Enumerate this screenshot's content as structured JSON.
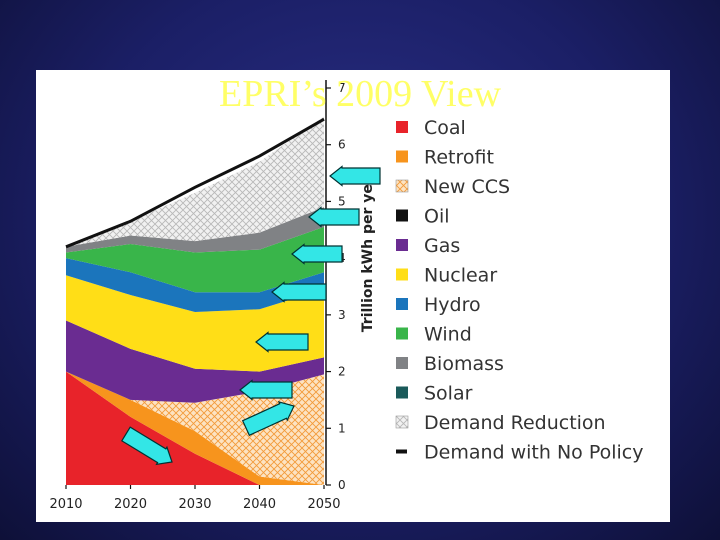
{
  "slide": {
    "title": "EPRI’s 2009 View"
  },
  "colors": {
    "background": "#1b1f66",
    "title": "#ffff66",
    "arrow_fill": "#33e6e6",
    "arrow_stroke": "#003333"
  },
  "chart_data": {
    "type": "area",
    "stacked": true,
    "x": [
      2010,
      2020,
      2030,
      2040,
      2050
    ],
    "xlabel": "",
    "ylabel": "Trillion kWh per year",
    "ylim": [
      0,
      7
    ],
    "yticks": [
      0,
      1,
      2,
      3,
      4,
      5,
      6,
      7
    ],
    "xticks": [
      "2010",
      "2020",
      "2030",
      "2040",
      "2050"
    ],
    "grid": false,
    "legend_position": "right",
    "series": [
      {
        "name": "Coal",
        "color": "#e8232a",
        "pattern": false,
        "values": [
          2.0,
          1.2,
          0.55,
          0.0,
          0.0
        ]
      },
      {
        "name": "Retrofit",
        "color": "#f7941d",
        "pattern": false,
        "values": [
          0.0,
          0.3,
          0.4,
          0.15,
          0.0
        ]
      },
      {
        "name": "New CCS",
        "color": "#f7941d",
        "pattern": true,
        "values": [
          0.0,
          0.0,
          0.5,
          1.5,
          1.95
        ]
      },
      {
        "name": "Oil",
        "color": "#111111",
        "pattern": false,
        "values": [
          0.0,
          0.0,
          0.0,
          0.0,
          0.0
        ]
      },
      {
        "name": "Gas",
        "color": "#6a2c91",
        "pattern": false,
        "values": [
          0.9,
          0.9,
          0.6,
          0.35,
          0.3
        ]
      },
      {
        "name": "Nuclear",
        "color": "#ffde17",
        "pattern": false,
        "values": [
          0.8,
          0.95,
          1.0,
          1.1,
          1.2
        ]
      },
      {
        "name": "Hydro",
        "color": "#1b75bc",
        "pattern": false,
        "values": [
          0.3,
          0.4,
          0.35,
          0.3,
          0.3
        ]
      },
      {
        "name": "Wind",
        "color": "#39b54a",
        "pattern": false,
        "values": [
          0.1,
          0.5,
          0.7,
          0.75,
          0.8
        ]
      },
      {
        "name": "Biomass",
        "color": "#808285",
        "pattern": false,
        "values": [
          0.1,
          0.15,
          0.2,
          0.3,
          0.35
        ]
      },
      {
        "name": "Solar",
        "color": "#1a5a5a",
        "pattern": false,
        "values": [
          0.0,
          0.0,
          0.0,
          0.0,
          0.0
        ]
      },
      {
        "name": "Demand Reduction",
        "color": "#cfcfcf",
        "pattern": true,
        "values": [
          0.0,
          0.25,
          0.85,
          1.25,
          1.6
        ]
      }
    ],
    "demand_no_policy": {
      "name": "Demand with No Policy",
      "values": [
        4.2,
        4.65,
        5.25,
        5.8,
        6.45
      ]
    }
  }
}
